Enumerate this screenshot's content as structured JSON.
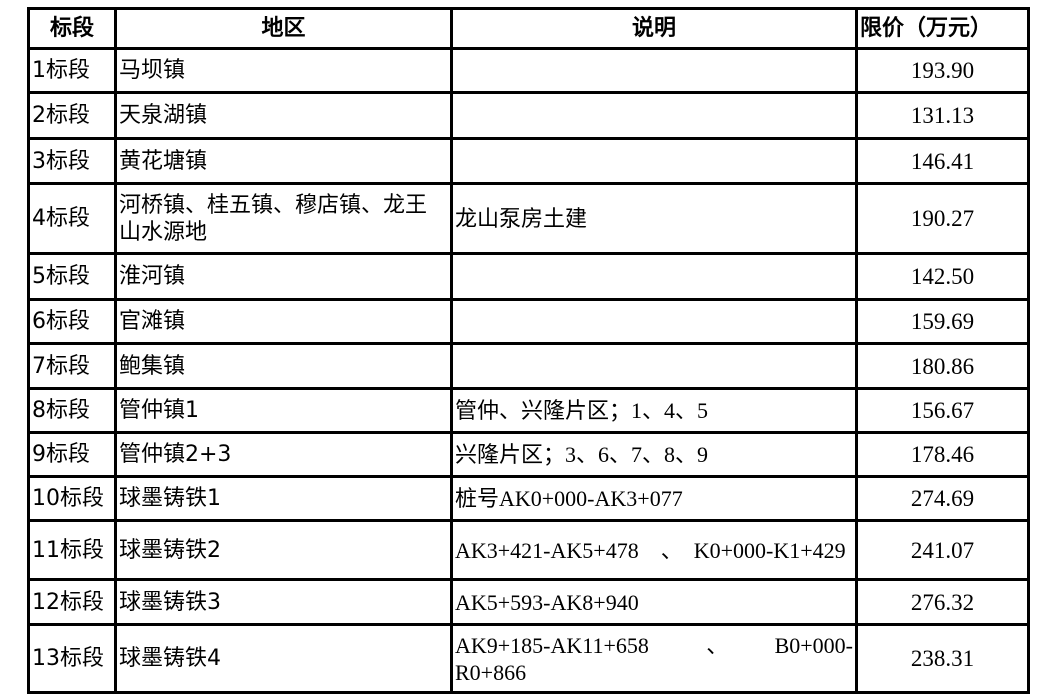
{
  "headers": {
    "segment": "标段",
    "region": "地区",
    "note": "说明",
    "price": "限价（万元）"
  },
  "rows": [
    {
      "segment": "1标段",
      "region": "马坝镇",
      "note": "",
      "price": "193.90"
    },
    {
      "segment": "2标段",
      "region": "天泉湖镇",
      "note": "",
      "price": "131.13"
    },
    {
      "segment": "3标段",
      "region": "黄花塘镇",
      "note": "",
      "price": "146.41"
    },
    {
      "segment": "4标段",
      "region": "河桥镇、桂五镇、穆店镇、龙王山水源地",
      "note": "龙山泵房土建",
      "price": "190.27"
    },
    {
      "segment": "5标段",
      "region": "淮河镇",
      "note": "",
      "price": "142.50"
    },
    {
      "segment": "6标段",
      "region": "官滩镇",
      "note": "",
      "price": "159.69"
    },
    {
      "segment": "7标段",
      "region": "鲍集镇",
      "note": "",
      "price": "180.86"
    },
    {
      "segment": "8标段",
      "region": "管仲镇1",
      "note": "管仲、兴隆片区；1、4、5",
      "price": "156.67"
    },
    {
      "segment": "9标段",
      "region": "管仲镇2+3",
      "note": "兴隆片区；3、6、7、8、9",
      "price": "178.46"
    },
    {
      "segment": "10标段",
      "region": "球墨铸铁1",
      "note": "桩号AK0+000-AK3+077",
      "price": "274.69"
    },
    {
      "segment": "11标段",
      "region": "球墨铸铁2",
      "note": "AK3+421-AK5+478　、　K0+000-K1+429",
      "price": "241.07"
    },
    {
      "segment": "12标段",
      "region": "球墨铸铁3",
      "note": "AK5+593-AK8+940",
      "price": "276.32"
    },
    {
      "segment": "13标段",
      "region": "球墨铸铁4",
      "note": "AK9+185-AK11+658　、　B0+000-R0+866",
      "price": "238.31"
    }
  ]
}
